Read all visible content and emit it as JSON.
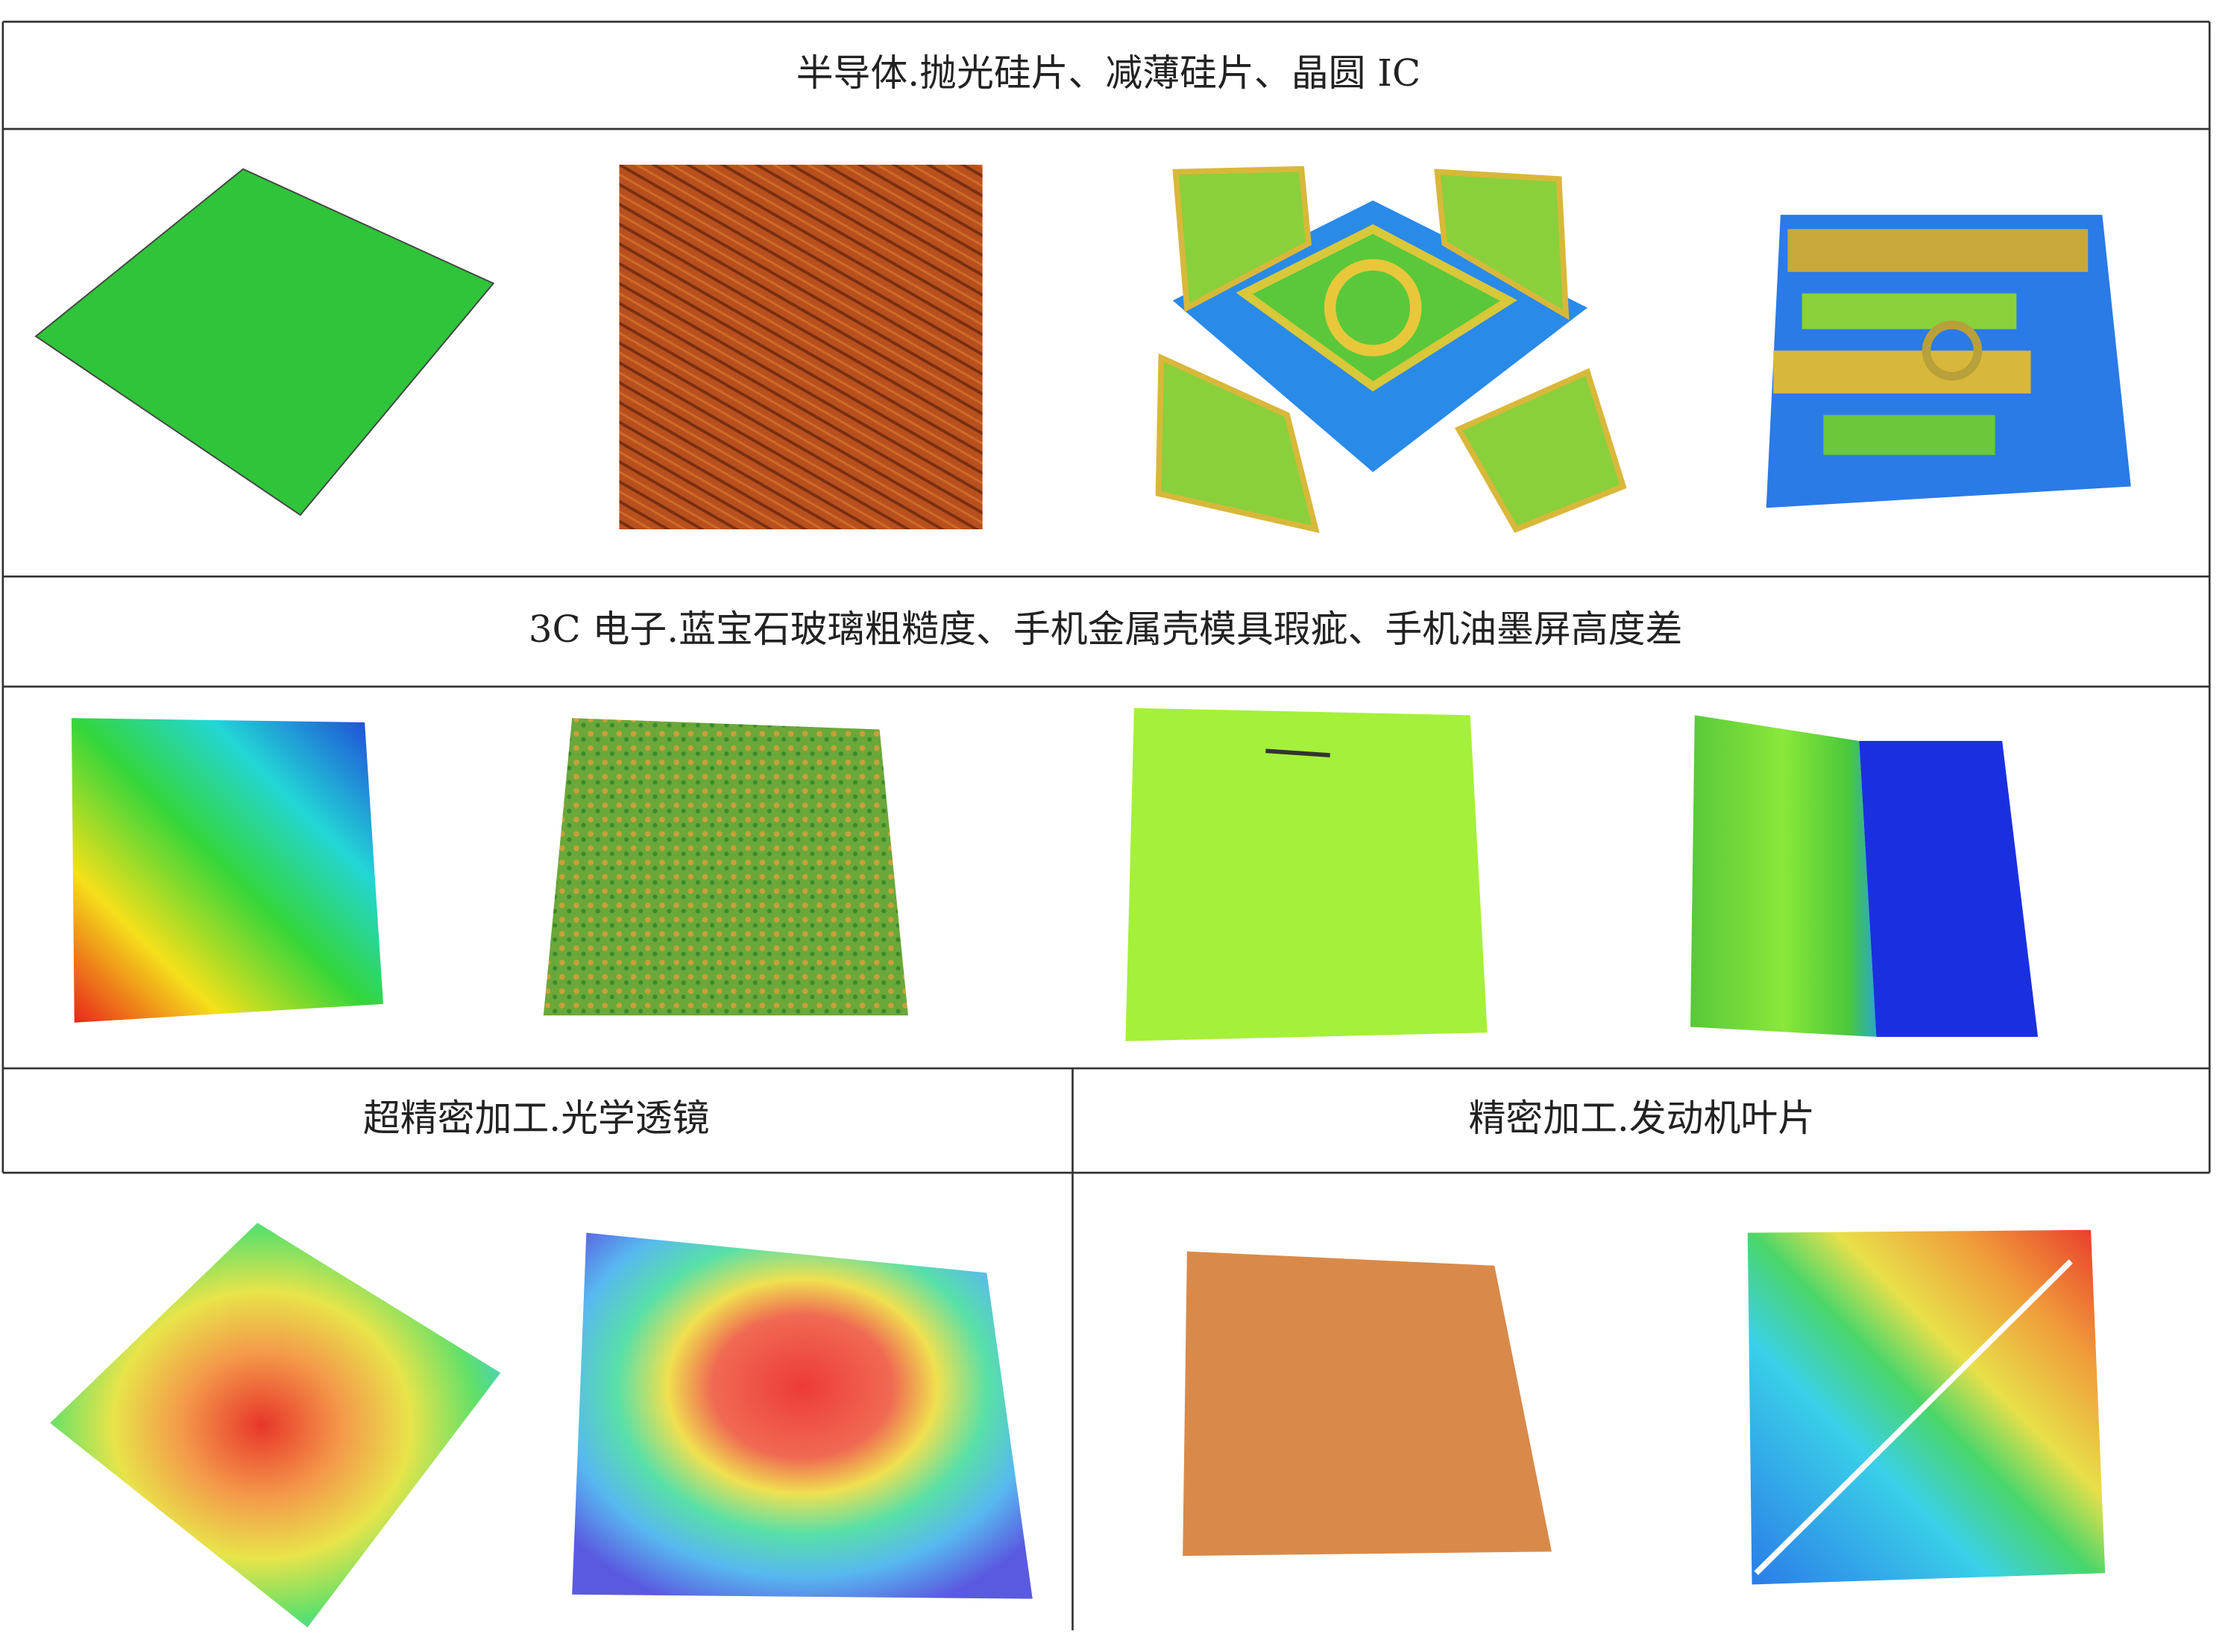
{
  "sections": [
    {
      "title": "半导体.抛光硅片、减薄硅片、晶圆 IC"
    },
    {
      "title": "3C 电子.蓝宝石玻璃粗糙度、手机金属壳模具瑕疵、手机油墨屏高度差"
    },
    {
      "title": "超精密加工.光学透镜"
    },
    {
      "title": "精密加工.发动机叶片"
    }
  ]
}
